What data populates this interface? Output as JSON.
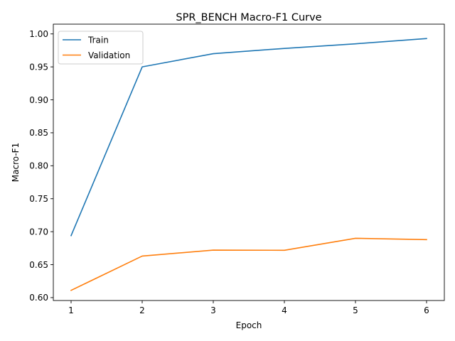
{
  "chart_data": {
    "type": "line",
    "title": "SPR_BENCH Macro-F1 Curve",
    "xlabel": "Epoch",
    "ylabel": "Macro-F1",
    "x": [
      1,
      2,
      3,
      4,
      5,
      6
    ],
    "xticks": [
      "1",
      "2",
      "3",
      "4",
      "5",
      "6"
    ],
    "yticks": [
      "0.60",
      "0.65",
      "0.70",
      "0.75",
      "0.80",
      "0.85",
      "0.90",
      "0.95",
      "1.00"
    ],
    "xlim": [
      0.75,
      6.25
    ],
    "ylim": [
      0.5956,
      1.0148
    ],
    "grid": false,
    "legend_position": "top-left",
    "series": [
      {
        "name": "Train",
        "color": "#1f77b4",
        "values": [
          0.694,
          0.95,
          0.97,
          0.978,
          0.985,
          0.993
        ]
      },
      {
        "name": "Validation",
        "color": "#ff7f0e",
        "values": [
          0.611,
          0.663,
          0.672,
          0.6718,
          0.69,
          0.688
        ]
      }
    ]
  }
}
